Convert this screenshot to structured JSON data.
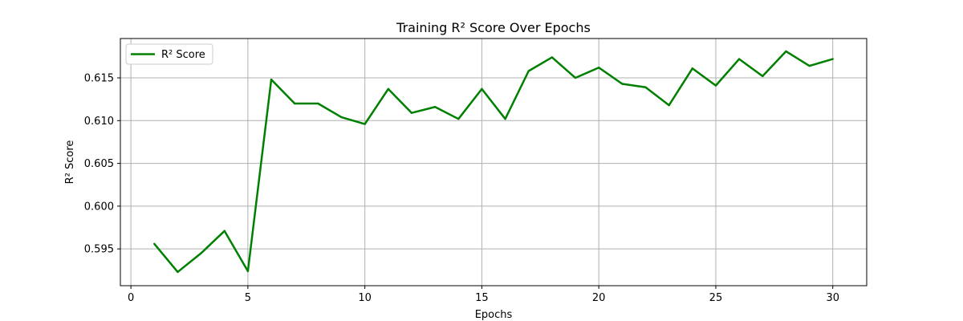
{
  "chart_data": {
    "type": "line",
    "title": "Training R² Score Over Epochs",
    "xlabel": "Epochs",
    "ylabel": "R² Score",
    "xlim": [
      -0.45,
      31.45
    ],
    "ylim": [
      0.5907,
      0.6196
    ],
    "xticks": [
      0,
      5,
      10,
      15,
      20,
      25,
      30
    ],
    "yticks": [
      0.595,
      0.6,
      0.605,
      0.61,
      0.615
    ],
    "ytick_labels": [
      "0.595",
      "0.600",
      "0.605",
      "0.610",
      "0.615"
    ],
    "grid": true,
    "legend_position": "top-left",
    "series": [
      {
        "name": "R² Score",
        "color": "#008000",
        "x": [
          1,
          2,
          3,
          4,
          5,
          6,
          7,
          8,
          9,
          10,
          11,
          12,
          13,
          14,
          15,
          16,
          17,
          18,
          19,
          20,
          21,
          22,
          23,
          24,
          25,
          26,
          27,
          28,
          29,
          30
        ],
        "y": [
          0.5956,
          0.5923,
          0.5945,
          0.5971,
          0.5924,
          0.6148,
          0.612,
          0.612,
          0.6104,
          0.6096,
          0.6137,
          0.6109,
          0.6116,
          0.6102,
          0.6137,
          0.6102,
          0.6158,
          0.6174,
          0.615,
          0.6162,
          0.6143,
          0.6139,
          0.6118,
          0.6161,
          0.6141,
          0.6172,
          0.6152,
          0.6181,
          0.6164,
          0.6172
        ]
      }
    ]
  }
}
